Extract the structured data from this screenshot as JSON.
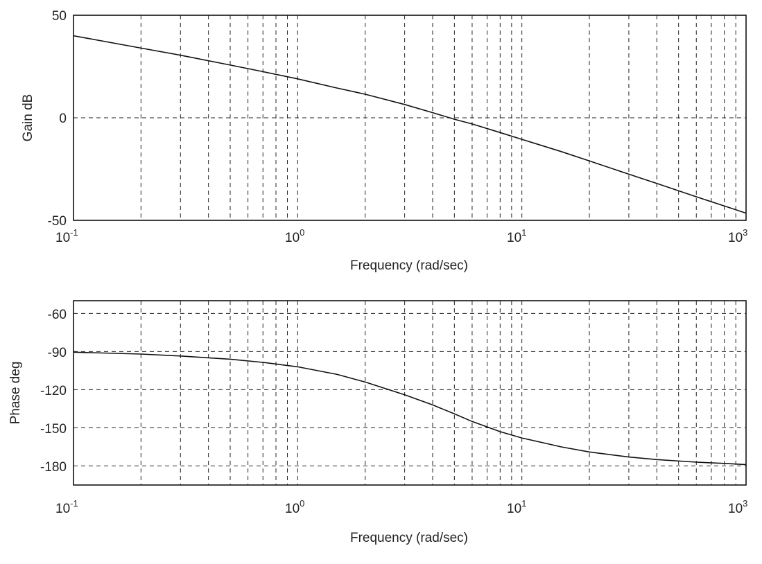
{
  "chart_data": [
    {
      "type": "line",
      "xscale": "log",
      "xlim": [
        0.1,
        100
      ],
      "ylim": [
        -50,
        50
      ],
      "grid": true,
      "xlabel": "Frequency (rad/sec)",
      "ylabel": "Gain dB",
      "x_ticks": [
        {
          "base": "10",
          "exp": "-1"
        },
        {
          "base": "10",
          "exp": "0"
        },
        {
          "base": "10",
          "exp": "1"
        },
        {
          "base": "10",
          "exp": "3"
        }
      ],
      "y_ticks": [
        "50",
        "0",
        "-50"
      ],
      "series": [
        {
          "x": [
            0.1,
            0.2,
            0.3,
            0.5,
            0.7,
            1,
            1.5,
            2,
            3,
            4,
            5,
            6,
            8,
            10,
            15,
            20,
            30,
            40,
            60,
            80,
            100
          ],
          "y": [
            40,
            34,
            30.5,
            25.7,
            22.5,
            19,
            14.5,
            11.5,
            6.5,
            2.5,
            -0.7,
            -3,
            -7.2,
            -10.5,
            -16.5,
            -21,
            -27.5,
            -32,
            -38.5,
            -43,
            -46.5
          ]
        }
      ]
    },
    {
      "type": "line",
      "xscale": "log",
      "xlim": [
        0.1,
        100
      ],
      "ylim": [
        -195,
        -50
      ],
      "grid": true,
      "xlabel": "Frequency (rad/sec)",
      "ylabel": "Phase deg",
      "x_ticks": [
        {
          "base": "10",
          "exp": "-1"
        },
        {
          "base": "10",
          "exp": "0"
        },
        {
          "base": "10",
          "exp": "1"
        },
        {
          "base": "10",
          "exp": "3"
        }
      ],
      "y_ticks": [
        "-60",
        "-90",
        "-120",
        "-150",
        "-180"
      ],
      "series": [
        {
          "x": [
            0.1,
            0.2,
            0.3,
            0.5,
            0.7,
            1,
            1.5,
            2,
            3,
            4,
            5,
            6,
            8,
            10,
            15,
            20,
            30,
            40,
            60,
            80,
            100
          ],
          "y": [
            -90.5,
            -92,
            -93.5,
            -96,
            -98.5,
            -102,
            -108,
            -114,
            -124,
            -132,
            -139,
            -145,
            -153,
            -158,
            -165,
            -169,
            -173,
            -175,
            -177,
            -178,
            -179
          ]
        }
      ]
    }
  ]
}
